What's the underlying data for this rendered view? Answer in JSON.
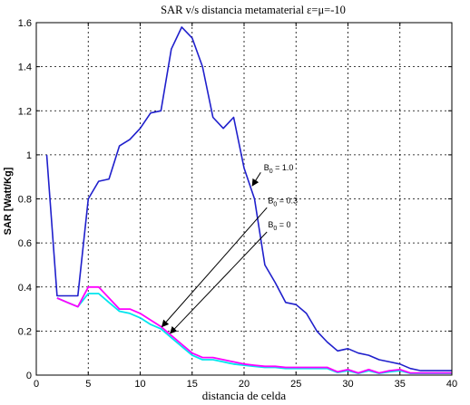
{
  "chart_data": {
    "type": "line",
    "title": "SAR v/s distancia metamaterial ε=μ=-10",
    "xlabel": "distancia de celda",
    "ylabel": "SAR [Watt/Kg]",
    "xlim": [
      0,
      40
    ],
    "ylim": [
      0,
      1.6
    ],
    "xticks": [
      "0",
      "5",
      "10",
      "15",
      "20",
      "25",
      "30",
      "35",
      "40"
    ],
    "yticks": [
      "0",
      "0.2",
      "0.4",
      "0.6",
      "0.8",
      "1",
      "1.2",
      "1.4",
      "1.6"
    ],
    "grid": true,
    "series": [
      {
        "name": "B0 = 1.0",
        "color": "#1f1fcc",
        "x": [
          1,
          2,
          3,
          4,
          5,
          6,
          7,
          8,
          9,
          10,
          11,
          12,
          13,
          14,
          15,
          16,
          17,
          18,
          19,
          20,
          21,
          22,
          23,
          24,
          25,
          26,
          27,
          28,
          29,
          30,
          31,
          32,
          33,
          34,
          35,
          36,
          37,
          38,
          39,
          40
        ],
        "y": [
          1.0,
          0.36,
          0.36,
          0.36,
          0.8,
          0.88,
          0.89,
          1.04,
          1.07,
          1.12,
          1.19,
          1.2,
          1.48,
          1.58,
          1.53,
          1.4,
          1.17,
          1.12,
          1.17,
          0.94,
          0.8,
          0.5,
          0.42,
          0.33,
          0.32,
          0.28,
          0.2,
          0.15,
          0.11,
          0.12,
          0.1,
          0.09,
          0.07,
          0.06,
          0.05,
          0.03,
          0.02,
          0.02,
          0.02,
          0.02
        ]
      },
      {
        "name": "B0 = 0.3",
        "color": "#ff00ff",
        "x": [
          2,
          3,
          4,
          5,
          6,
          7,
          8,
          9,
          10,
          11,
          12,
          13,
          14,
          15,
          16,
          17,
          18,
          19,
          20,
          21,
          22,
          23,
          24,
          25,
          26,
          27,
          28,
          29,
          30,
          31,
          32,
          33,
          34,
          35,
          36,
          37,
          38,
          39,
          40
        ],
        "y": [
          0.35,
          0.33,
          0.31,
          0.4,
          0.4,
          0.35,
          0.3,
          0.3,
          0.28,
          0.25,
          0.22,
          0.18,
          0.14,
          0.1,
          0.08,
          0.08,
          0.07,
          0.06,
          0.05,
          0.045,
          0.04,
          0.04,
          0.035,
          0.035,
          0.035,
          0.035,
          0.035,
          0.015,
          0.025,
          0.01,
          0.025,
          0.01,
          0.02,
          0.025,
          0.01,
          0.01,
          0.01,
          0.01,
          0.01
        ]
      },
      {
        "name": "B0 = 0",
        "color": "#00e5ee",
        "x": [
          2,
          3,
          4,
          5,
          6,
          7,
          8,
          9,
          10,
          11,
          12,
          13,
          14,
          15,
          16,
          17,
          18,
          19,
          20,
          21,
          22,
          23,
          24,
          25,
          26,
          27,
          28,
          29,
          30,
          31,
          32,
          33,
          34,
          35,
          36,
          37,
          38,
          39,
          40
        ],
        "y": [
          0.35,
          0.33,
          0.31,
          0.37,
          0.37,
          0.33,
          0.29,
          0.28,
          0.26,
          0.23,
          0.21,
          0.17,
          0.13,
          0.09,
          0.07,
          0.07,
          0.06,
          0.05,
          0.045,
          0.04,
          0.035,
          0.035,
          0.03,
          0.03,
          0.03,
          0.03,
          0.03,
          0.012,
          0.02,
          0.008,
          0.02,
          0.008,
          0.015,
          0.02,
          0.008,
          0.008,
          0.008,
          0.008,
          0.008
        ]
      }
    ],
    "annotations": [
      {
        "text": "B",
        "sub": "0",
        "rest": " = 1.0",
        "text_at": [
          21.9,
          0.93
        ],
        "arrow_from": [
          21.6,
          0.92
        ],
        "arrow_to": [
          20.8,
          0.86
        ]
      },
      {
        "text": "B",
        "sub": "0",
        "rest": " = 0.3",
        "text_at": [
          22.3,
          0.78
        ],
        "arrow_from": [
          22.2,
          0.76
        ],
        "arrow_to": [
          12.1,
          0.22
        ]
      },
      {
        "text": "B",
        "sub": "0",
        "rest": " = 0",
        "text_at": [
          22.3,
          0.67
        ],
        "arrow_from": [
          22.2,
          0.65
        ],
        "arrow_to": [
          12.9,
          0.19
        ]
      }
    ]
  }
}
